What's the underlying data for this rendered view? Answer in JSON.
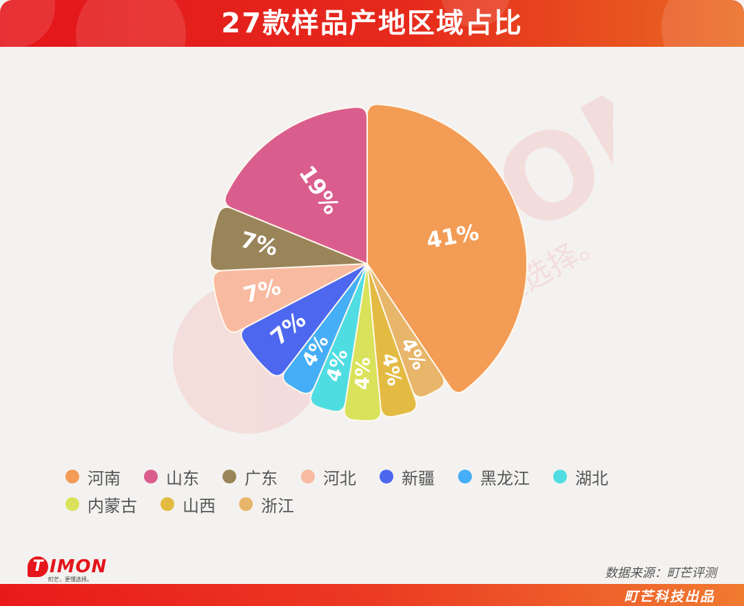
{
  "header": {
    "title": "27款样品产地区域占比"
  },
  "chart_data": {
    "type": "pie",
    "variant": "nightingale-rose",
    "title": "27款样品产地区域占比",
    "center": [
      533,
      383
    ],
    "start_angle_deg": 0,
    "direction": "clockwise",
    "slices": [
      {
        "name": "河南",
        "value": 41,
        "label": "41%",
        "color": "#f39c55",
        "radius": 232
      },
      {
        "name": "浙江",
        "value": 4,
        "label": "4%",
        "color": "#e8b66a",
        "radius": 210
      },
      {
        "name": "山西",
        "value": 4,
        "label": "4%",
        "color": "#e4bb42",
        "radius": 225
      },
      {
        "name": "内蒙古",
        "value": 4,
        "label": "4%",
        "color": "#d9e25a",
        "radius": 228
      },
      {
        "name": "湖北",
        "value": 4,
        "label": "4%",
        "color": "#4fdde2",
        "radius": 220
      },
      {
        "name": "黑龙江",
        "value": 4,
        "label": "4%",
        "color": "#45aef6",
        "radius": 210
      },
      {
        "name": "新疆",
        "value": 7,
        "label": "7%",
        "color": "#4d67ef",
        "radius": 212
      },
      {
        "name": "河北",
        "value": 7,
        "label": "7%",
        "color": "#f8baa0",
        "radius": 225
      },
      {
        "name": "广东",
        "value": 7,
        "label": "7%",
        "color": "#9a8459",
        "radius": 228
      },
      {
        "name": "山东",
        "value": 19,
        "label": "19%",
        "color": "#da5e8d",
        "radius": 228
      }
    ],
    "legend": {
      "position": "bottom",
      "rows": [
        [
          "河南",
          "山东",
          "广东",
          "河北",
          "新疆",
          "黑龙江",
          "湖北"
        ],
        [
          "内蒙古",
          "山西",
          "浙江"
        ]
      ]
    }
  },
  "legend": {
    "row1": [
      {
        "label": "河南",
        "color": "#f39c55"
      },
      {
        "label": "山东",
        "color": "#da5e8d"
      },
      {
        "label": "广东",
        "color": "#9a8459"
      },
      {
        "label": "河北",
        "color": "#f8baa0"
      },
      {
        "label": "新疆",
        "color": "#4d67ef"
      },
      {
        "label": "黑龙江",
        "color": "#45aef6"
      },
      {
        "label": "湖北",
        "color": "#4fdde2"
      }
    ],
    "row2": [
      {
        "label": "内蒙古",
        "color": "#d9e25a"
      },
      {
        "label": "山西",
        "color": "#e4bb42"
      },
      {
        "label": "浙江",
        "color": "#e8b66a"
      }
    ]
  },
  "watermark": {
    "brand": "TIMON",
    "slogan": "町芒，更懂选择。"
  },
  "logo": {
    "mark": "T",
    "brand": "IMON",
    "slogan": "町芒，更懂选择。"
  },
  "source": "数据来源：町芒评测",
  "footer": {
    "credit": "町芒科技出品"
  },
  "colors": {
    "brand_red": "#e4151b",
    "background": "#f4f2f0"
  }
}
